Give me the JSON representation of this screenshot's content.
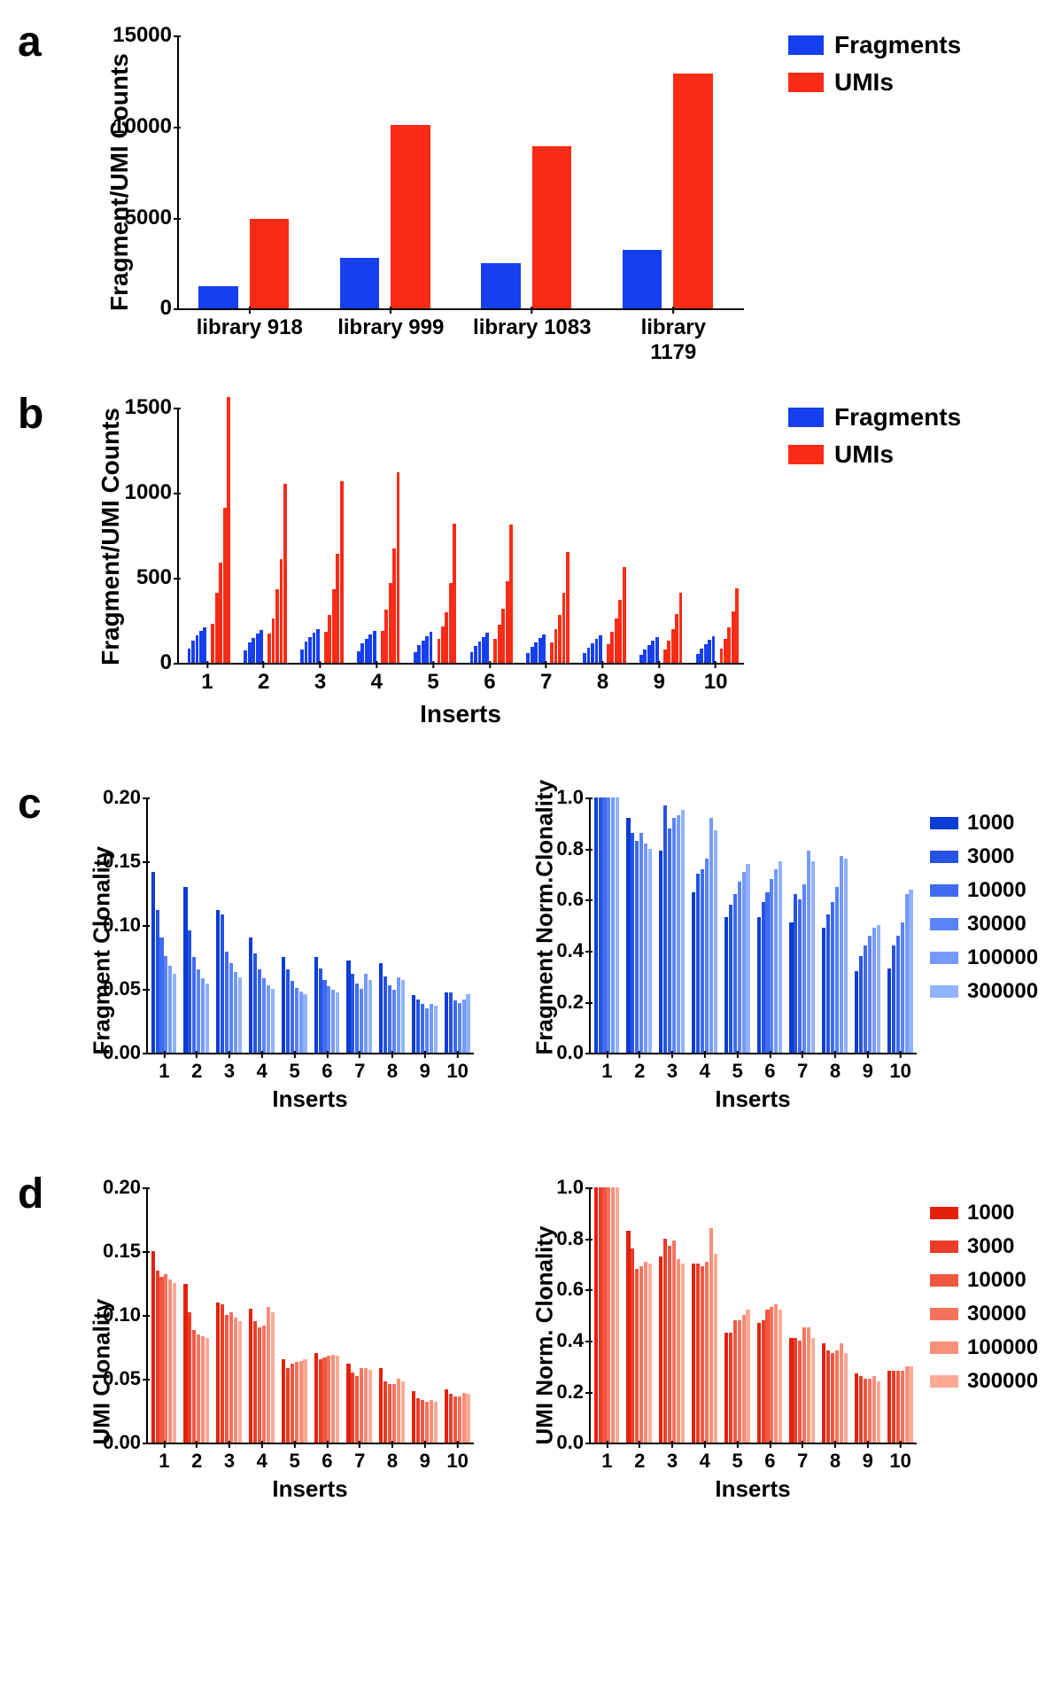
{
  "colors": {
    "fragments": "#163fef",
    "umis": "#f82c17",
    "blue_scale": [
      "#0b3cd6",
      "#2553e3",
      "#3f6bf0",
      "#5a83f6",
      "#759afb",
      "#90b2ff"
    ],
    "red_scale": [
      "#e4200b",
      "#ea3c26",
      "#f05741",
      "#f5735d",
      "#f98e79",
      "#fcaa96"
    ]
  },
  "panel_a": {
    "label": "a",
    "ylabel": "Fragment/UMI Counts",
    "ylim": [
      0,
      15000
    ],
    "ytick_step": 5000,
    "categories": [
      "library 918",
      "library 999",
      "library 1083",
      "library 1179"
    ],
    "series": [
      {
        "name": "Fragments",
        "color_key": "fragments",
        "values": [
          1200,
          2800,
          2500,
          3200
        ]
      },
      {
        "name": "UMIs",
        "color_key": "umis",
        "values": [
          4900,
          10100,
          8900,
          12900
        ]
      }
    ],
    "legend": [
      {
        "label": "Fragments",
        "color_key": "fragments"
      },
      {
        "label": "UMIs",
        "color_key": "umis"
      }
    ],
    "tick_fontsize": 24,
    "label_fontsize": 28,
    "legend_fontsize": 28
  },
  "panel_b": {
    "label": "b",
    "ylabel": "Fragment/UMI Counts",
    "xlabel": "Inserts",
    "ylim": [
      0,
      1500
    ],
    "ytick_step": 500,
    "xticks": [
      1,
      2,
      3,
      4,
      5,
      6,
      7,
      8,
      9,
      10
    ],
    "groups": 10,
    "bars_per_group": 6,
    "fragments": [
      [
        0,
        85,
        130,
        160,
        190,
        210
      ],
      [
        0,
        75,
        120,
        145,
        170,
        195
      ],
      [
        0,
        80,
        125,
        150,
        175,
        200
      ],
      [
        0,
        70,
        115,
        140,
        165,
        190
      ],
      [
        0,
        65,
        105,
        130,
        155,
        180
      ],
      [
        0,
        60,
        100,
        125,
        150,
        175
      ],
      [
        0,
        55,
        95,
        120,
        145,
        165
      ],
      [
        0,
        55,
        90,
        115,
        140,
        160
      ],
      [
        0,
        45,
        80,
        105,
        130,
        150
      ],
      [
        0,
        50,
        85,
        110,
        135,
        155
      ]
    ],
    "umis": [
      [
        0,
        230,
        410,
        590,
        910,
        1560
      ],
      [
        0,
        170,
        260,
        430,
        610,
        1050
      ],
      [
        0,
        180,
        280,
        430,
        640,
        1070
      ],
      [
        0,
        185,
        310,
        470,
        670,
        1120
      ],
      [
        0,
        140,
        215,
        295,
        470,
        820
      ],
      [
        0,
        140,
        225,
        320,
        480,
        815
      ],
      [
        0,
        120,
        200,
        280,
        410,
        650
      ],
      [
        0,
        110,
        180,
        260,
        370,
        565
      ],
      [
        0,
        80,
        130,
        200,
        285,
        410
      ],
      [
        0,
        85,
        140,
        210,
        300,
        435
      ]
    ],
    "legend": [
      {
        "label": "Fragments",
        "color_key": "fragments"
      },
      {
        "label": "UMIs",
        "color_key": "umis"
      }
    ],
    "tick_fontsize": 24,
    "label_fontsize": 28,
    "legend_fontsize": 28
  },
  "panel_c": {
    "label": "c",
    "subplots": [
      {
        "ylabel": "Fragment Clonality",
        "ylim": [
          0,
          0.2
        ],
        "ytick_step": 0.05,
        "data": [
          [
            0.142,
            0.112,
            0.09,
            0.076,
            0.068,
            0.062
          ],
          [
            0.13,
            0.096,
            0.075,
            0.065,
            0.058,
            0.054
          ],
          [
            0.112,
            0.108,
            0.079,
            0.07,
            0.063,
            0.059
          ],
          [
            0.09,
            0.078,
            0.065,
            0.058,
            0.053,
            0.05
          ],
          [
            0.075,
            0.065,
            0.056,
            0.051,
            0.048,
            0.046
          ],
          [
            0.075,
            0.066,
            0.057,
            0.052,
            0.049,
            0.047
          ],
          [
            0.072,
            0.062,
            0.054,
            0.05,
            0.062,
            0.057
          ],
          [
            0.07,
            0.06,
            0.053,
            0.049,
            0.059,
            0.057
          ],
          [
            0.045,
            0.042,
            0.038,
            0.035,
            0.038,
            0.037
          ],
          [
            0.047,
            0.047,
            0.041,
            0.039,
            0.042,
            0.046
          ]
        ]
      },
      {
        "ylabel": "Fragment Norm.Clonality",
        "ylim": [
          0,
          1.0
        ],
        "ytick_step": 0.2,
        "data": [
          [
            1.0,
            1.0,
            1.0,
            1.0,
            1.0,
            1.0
          ],
          [
            0.92,
            0.86,
            0.83,
            0.86,
            0.82,
            0.8
          ],
          [
            0.79,
            0.97,
            0.88,
            0.92,
            0.93,
            0.95
          ],
          [
            0.63,
            0.7,
            0.72,
            0.76,
            0.92,
            0.87
          ],
          [
            0.53,
            0.58,
            0.62,
            0.67,
            0.71,
            0.74
          ],
          [
            0.53,
            0.59,
            0.63,
            0.68,
            0.72,
            0.75
          ],
          [
            0.51,
            0.62,
            0.6,
            0.66,
            0.79,
            0.75
          ],
          [
            0.49,
            0.54,
            0.59,
            0.65,
            0.77,
            0.76
          ],
          [
            0.32,
            0.38,
            0.42,
            0.46,
            0.49,
            0.5
          ],
          [
            0.33,
            0.42,
            0.46,
            0.51,
            0.62,
            0.64
          ]
        ]
      }
    ],
    "xlabel": "Inserts",
    "xticks": [
      1,
      2,
      3,
      4,
      5,
      6,
      7,
      8,
      9,
      10
    ],
    "scale_labels": [
      "1000",
      "3000",
      "10000",
      "30000",
      "100000",
      "300000"
    ],
    "color_scale_key": "blue_scale",
    "tick_fontsize": 22,
    "label_fontsize": 26,
    "legend_fontsize": 24
  },
  "panel_d": {
    "label": "d",
    "subplots": [
      {
        "ylabel": "UMI Clonality",
        "ylim": [
          0,
          0.2
        ],
        "ytick_step": 0.05,
        "data": [
          [
            0.15,
            0.135,
            0.13,
            0.132,
            0.128,
            0.125
          ],
          [
            0.124,
            0.102,
            0.088,
            0.085,
            0.083,
            0.082
          ],
          [
            0.11,
            0.108,
            0.1,
            0.102,
            0.098,
            0.095
          ],
          [
            0.105,
            0.095,
            0.09,
            0.092,
            0.106,
            0.102
          ],
          [
            0.065,
            0.058,
            0.062,
            0.063,
            0.064,
            0.065
          ],
          [
            0.07,
            0.065,
            0.067,
            0.068,
            0.069,
            0.068
          ],
          [
            0.062,
            0.055,
            0.052,
            0.058,
            0.058,
            0.057
          ],
          [
            0.058,
            0.048,
            0.046,
            0.046,
            0.05,
            0.048
          ],
          [
            0.04,
            0.035,
            0.033,
            0.032,
            0.033,
            0.032
          ],
          [
            0.042,
            0.038,
            0.036,
            0.036,
            0.039,
            0.038
          ]
        ]
      },
      {
        "ylabel": "UMI Norm. Clonality",
        "ylim": [
          0,
          1.0
        ],
        "ytick_step": 0.2,
        "data": [
          [
            1.0,
            1.0,
            1.0,
            1.0,
            1.0,
            1.0
          ],
          [
            0.83,
            0.76,
            0.68,
            0.69,
            0.71,
            0.7
          ],
          [
            0.73,
            0.8,
            0.77,
            0.79,
            0.72,
            0.7
          ],
          [
            0.7,
            0.7,
            0.69,
            0.71,
            0.84,
            0.74
          ],
          [
            0.43,
            0.43,
            0.48,
            0.48,
            0.5,
            0.52
          ],
          [
            0.47,
            0.48,
            0.52,
            0.53,
            0.54,
            0.52
          ],
          [
            0.41,
            0.41,
            0.4,
            0.45,
            0.45,
            0.41
          ],
          [
            0.39,
            0.36,
            0.35,
            0.36,
            0.39,
            0.35
          ],
          [
            0.27,
            0.26,
            0.25,
            0.25,
            0.26,
            0.24
          ],
          [
            0.28,
            0.28,
            0.28,
            0.28,
            0.3,
            0.3
          ]
        ]
      }
    ],
    "xlabel": "Inserts",
    "xticks": [
      1,
      2,
      3,
      4,
      5,
      6,
      7,
      8,
      9,
      10
    ],
    "scale_labels": [
      "1000",
      "3000",
      "10000",
      "30000",
      "100000",
      "300000"
    ],
    "color_scale_key": "red_scale",
    "tick_fontsize": 22,
    "label_fontsize": 26,
    "legend_fontsize": 24
  }
}
